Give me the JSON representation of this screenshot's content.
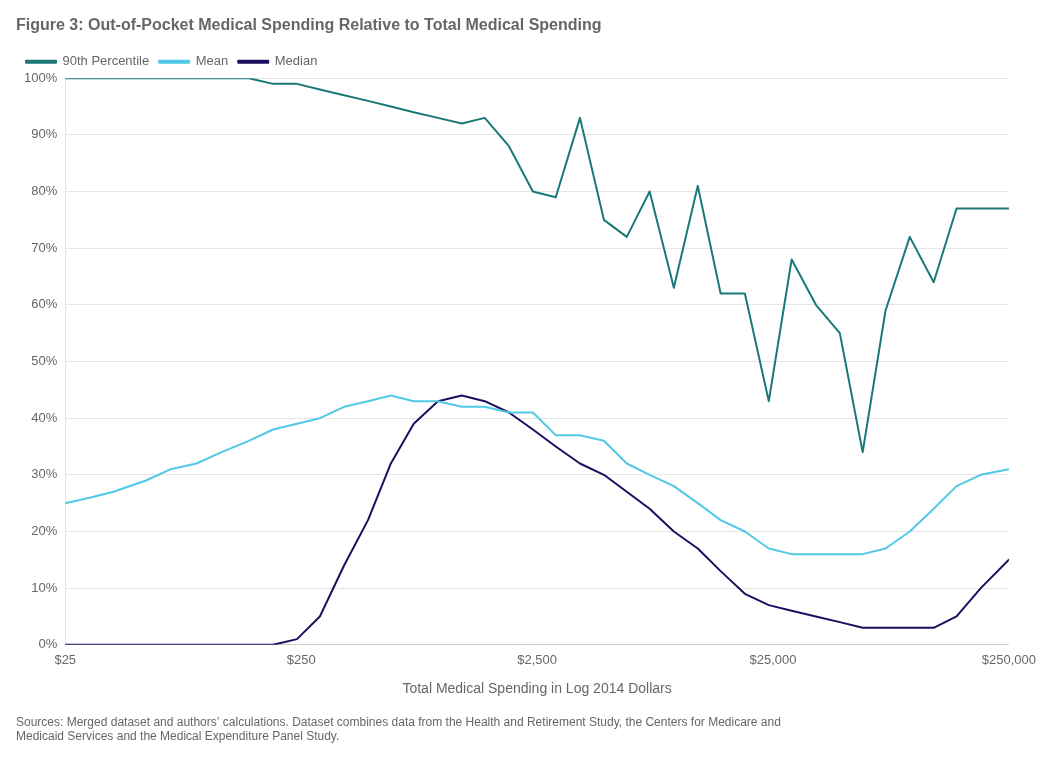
{
  "chart_data": {
    "type": "line",
    "title": "Figure 3: Out-of-Pocket Medical Spending Relative to Total Medical Spending",
    "x_label": "Total Medical Spending in Log 2014 Dollars",
    "footnote": "Sources: Merged dataset and authors’ calculations. Dataset combines data from the Health and Retirement Study, the Centers for Medicare and\nMedicaid Services and the Medical Expenditure Panel Study.",
    "log": "x",
    "grid": "y",
    "legend": "upper left",
    "xlim": [
      25,
      250000
    ],
    "xticks": [
      {
        "value": 25,
        "label": "$25"
      },
      {
        "value": 250,
        "label": "$250"
      },
      {
        "value": 2500,
        "label": "$2,500"
      },
      {
        "value": 25000,
        "label": "$25,000"
      },
      {
        "value": 250000,
        "label": "$250,000"
      }
    ],
    "ylim": [
      0,
      1.0
    ],
    "yticks": [
      {
        "value": 0.0,
        "label": "0%"
      },
      {
        "value": 0.1,
        "label": "10%"
      },
      {
        "value": 0.2,
        "label": "20%"
      },
      {
        "value": 0.3,
        "label": "30%"
      },
      {
        "value": 0.4,
        "label": "40%"
      },
      {
        "value": 0.5,
        "label": "50%"
      },
      {
        "value": 0.6,
        "label": "60%"
      },
      {
        "value": 0.7,
        "label": "70%"
      },
      {
        "value": 0.8,
        "label": "80%"
      },
      {
        "value": 0.9,
        "label": "90%"
      },
      {
        "value": 1.0,
        "label": "100%"
      }
    ],
    "x": [
      25,
      32,
      40,
      55,
      70,
      90,
      115,
      150,
      190,
      240,
      300,
      380,
      480,
      600,
      750,
      950,
      1200,
      1500,
      1900,
      2400,
      3000,
      3800,
      4800,
      6000,
      7500,
      9500,
      12000,
      15000,
      19000,
      24000,
      30000,
      38000,
      48000,
      60000,
      75000,
      95000,
      120000,
      150000,
      190000,
      250000
    ],
    "series": [
      {
        "name": "90th Percentile",
        "color": "#1a7878",
        "values": [
          1.0,
          1.0,
          1.0,
          1.0,
          1.0,
          1.0,
          1.0,
          1.0,
          0.99,
          0.99,
          0.98,
          0.97,
          0.96,
          0.95,
          0.94,
          0.93,
          0.92,
          0.93,
          0.88,
          0.8,
          0.79,
          0.93,
          0.75,
          0.72,
          0.8,
          0.63,
          0.81,
          0.62,
          0.62,
          0.43,
          0.68,
          0.6,
          0.55,
          0.34,
          0.59,
          0.72,
          0.64,
          0.77,
          0.77,
          0.77
        ]
      },
      {
        "name": "Mean",
        "color": "#50c8e8",
        "values": [
          0.25,
          0.26,
          0.27,
          0.29,
          0.31,
          0.32,
          0.34,
          0.36,
          0.38,
          0.39,
          0.4,
          0.42,
          0.43,
          0.44,
          0.43,
          0.43,
          0.42,
          0.42,
          0.41,
          0.41,
          0.37,
          0.37,
          0.36,
          0.32,
          0.3,
          0.28,
          0.25,
          0.22,
          0.2,
          0.17,
          0.16,
          0.16,
          0.16,
          0.16,
          0.17,
          0.2,
          0.24,
          0.28,
          0.3,
          0.31
        ]
      },
      {
        "name": "Median",
        "color": "#1a1060",
        "values": [
          0.0,
          0.0,
          0.0,
          0.0,
          0.0,
          0.0,
          0.0,
          0.0,
          0.0,
          0.01,
          0.05,
          0.14,
          0.22,
          0.32,
          0.39,
          0.43,
          0.44,
          0.43,
          0.41,
          0.38,
          0.35,
          0.32,
          0.3,
          0.27,
          0.24,
          0.2,
          0.17,
          0.13,
          0.09,
          0.07,
          0.06,
          0.05,
          0.04,
          0.03,
          0.03,
          0.03,
          0.03,
          0.05,
          0.1,
          0.15
        ]
      }
    ]
  }
}
